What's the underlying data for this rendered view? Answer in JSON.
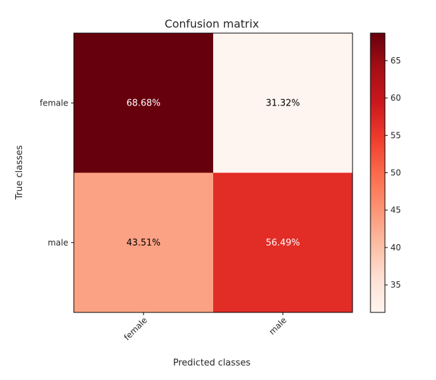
{
  "chart_data": {
    "type": "heatmap",
    "title": "Confusion matrix",
    "xlabel": "Predicted classes",
    "ylabel": "True classes",
    "x_categories": [
      "female",
      "male"
    ],
    "y_categories": [
      "female",
      "male"
    ],
    "values": [
      [
        68.68,
        31.32
      ],
      [
        43.51,
        56.49
      ]
    ],
    "cell_labels": [
      [
        "68.68%",
        "31.32%"
      ],
      [
        "43.51%",
        "56.49%"
      ]
    ],
    "colormap": "Reds",
    "colorbar": {
      "range": [
        31.32,
        68.68
      ],
      "ticks": [
        35,
        40,
        45,
        50,
        55,
        60,
        65
      ]
    },
    "x_tick_rotation_deg": 45
  }
}
